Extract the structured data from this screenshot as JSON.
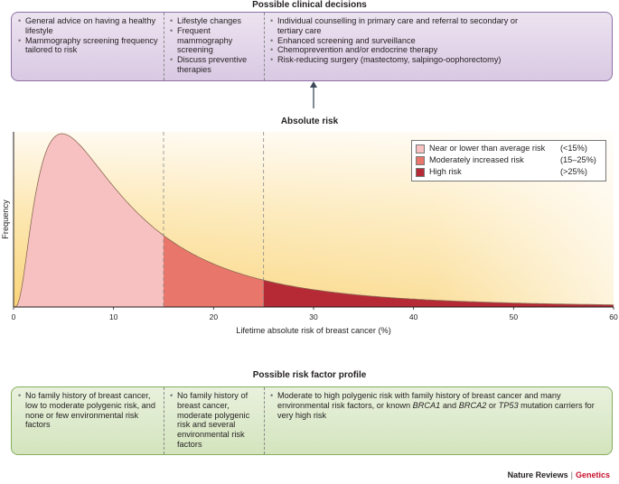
{
  "decisions": {
    "title": "Possible clinical decisions",
    "col1": [
      "General advice on having a healthy lifestyle",
      "Mammography screening frequency tailored to risk"
    ],
    "col2": [
      "Lifestyle changes",
      "Frequent mammography screening",
      "Discuss preventive therapies"
    ],
    "col3": [
      "Individual counselling in primary care and referral to secondary or tertiary care",
      "Enhanced screening and surveillance",
      "Chemoprevention and/or endocrine therapy",
      "Risk-reducing surgery (mastectomy, salpingo-oophorectomy)"
    ]
  },
  "absolute_risk_label": "Absolute risk",
  "chart_data": {
    "type": "area",
    "xlabel": "Lifetime absolute risk of breast cancer (%)",
    "ylabel": "Frequency",
    "xlim": [
      0,
      60
    ],
    "xticks": [
      "0",
      "10",
      "20",
      "30",
      "40",
      "50",
      "60"
    ],
    "thresholds": [
      15,
      25
    ],
    "curve": "right-skewed distribution peaking near 4%",
    "legend": [
      {
        "label": "Near or lower than average risk",
        "range": "(<15%)",
        "color": "#f6c1c0"
      },
      {
        "label": "Moderately increased risk",
        "range": "(15–25%)",
        "color": "#e9766a"
      },
      {
        "label": "High risk",
        "range": "(>25%)",
        "color": "#b52a35"
      }
    ]
  },
  "profile": {
    "title": "Possible risk factor profile",
    "col1": [
      "No family history of breast cancer, low to moderate polygenic risk, and none or few environmental risk factors"
    ],
    "col2": [
      "No family history of breast cancer, moderate polygenic risk and several environmental risk factors"
    ],
    "col3_html": "Moderate to high polygenic risk with family history of breast cancer and many environmental risk factors, or known <i>BRCA1</i> and <i>BRCA2</i> or <i>TP53</i> mutation carriers for very high risk"
  },
  "brand": {
    "name": "Nature Reviews",
    "section": "Genetics"
  }
}
